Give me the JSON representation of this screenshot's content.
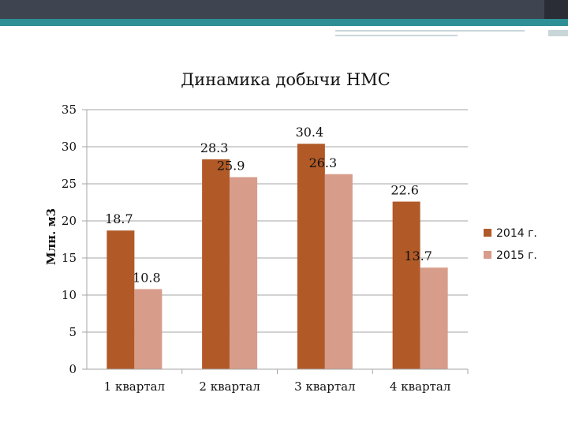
{
  "chart_data": {
    "type": "bar",
    "title": "Динамика добычи НМС",
    "ylabel": "Млн. м3",
    "xlabel": "",
    "categories": [
      "1 квартал",
      "2 квартал",
      "3 квартал",
      "4 квартал"
    ],
    "series": [
      {
        "name": "2014 г.",
        "values": [
          18.7,
          28.3,
          30.4,
          22.6
        ],
        "color": "#b15a28"
      },
      {
        "name": "2015 г.",
        "values": [
          10.8,
          25.9,
          26.3,
          13.7
        ],
        "color": "#d89c8a"
      }
    ],
    "ylim": [
      0,
      35
    ],
    "yticks": [
      0,
      5,
      10,
      15,
      20,
      25,
      30,
      35
    ],
    "grid": true,
    "legend_position": "right"
  },
  "colors": {
    "header_bar": "#3f4451",
    "accent_strip": "#2f8f96",
    "gridline": "#a6a6a6"
  }
}
